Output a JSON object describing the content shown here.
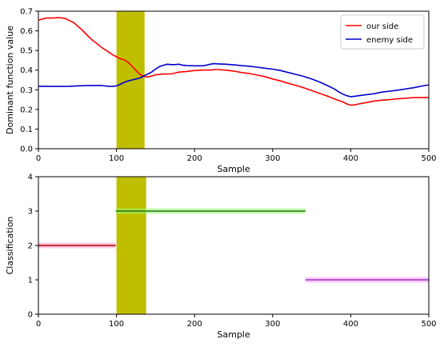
{
  "chart_data": [
    {
      "type": "line",
      "xlabel": "Sample",
      "ylabel": "Dominant function value",
      "xlim": [
        0,
        500
      ],
      "ylim": [
        0,
        0.7
      ],
      "x_ticks": [
        "0",
        "100",
        "200",
        "300",
        "400",
        "500"
      ],
      "y_ticks": [
        "0.0",
        "0.1",
        "0.2",
        "0.3",
        "0.4",
        "0.5",
        "0.6",
        "0.7"
      ],
      "legend_position": "top-right",
      "highlight_band": {
        "x_start": 100,
        "x_end": 136,
        "color": "#bfbf00"
      },
      "series": [
        {
          "name": "our side",
          "color": "#ff0000",
          "points": [
            [
              0,
              0.655
            ],
            [
              5,
              0.66
            ],
            [
              10,
              0.665
            ],
            [
              20,
              0.665
            ],
            [
              25,
              0.668
            ],
            [
              30,
              0.666
            ],
            [
              35,
              0.662
            ],
            [
              40,
              0.652
            ],
            [
              45,
              0.643
            ],
            [
              50,
              0.625
            ],
            [
              55,
              0.608
            ],
            [
              60,
              0.588
            ],
            [
              65,
              0.568
            ],
            [
              70,
              0.55
            ],
            [
              75,
              0.535
            ],
            [
              80,
              0.518
            ],
            [
              85,
              0.505
            ],
            [
              90,
              0.492
            ],
            [
              95,
              0.478
            ],
            [
              100,
              0.468
            ],
            [
              105,
              0.458
            ],
            [
              110,
              0.452
            ],
            [
              115,
              0.44
            ],
            [
              120,
              0.42
            ],
            [
              125,
              0.398
            ],
            [
              130,
              0.378
            ],
            [
              135,
              0.368
            ],
            [
              140,
              0.365
            ],
            [
              145,
              0.37
            ],
            [
              150,
              0.376
            ],
            [
              155,
              0.378
            ],
            [
              160,
              0.38
            ],
            [
              170,
              0.381
            ],
            [
              175,
              0.385
            ],
            [
              180,
              0.39
            ],
            [
              190,
              0.393
            ],
            [
              200,
              0.398
            ],
            [
              210,
              0.4
            ],
            [
              215,
              0.401
            ],
            [
              220,
              0.4
            ],
            [
              225,
              0.403
            ],
            [
              230,
              0.403
            ],
            [
              240,
              0.4
            ],
            [
              250,
              0.395
            ],
            [
              260,
              0.388
            ],
            [
              270,
              0.383
            ],
            [
              280,
              0.375
            ],
            [
              290,
              0.367
            ],
            [
              300,
              0.355
            ],
            [
              310,
              0.345
            ],
            [
              320,
              0.333
            ],
            [
              330,
              0.322
            ],
            [
              340,
              0.31
            ],
            [
              350,
              0.296
            ],
            [
              360,
              0.282
            ],
            [
              370,
              0.268
            ],
            [
              380,
              0.252
            ],
            [
              385,
              0.245
            ],
            [
              390,
              0.238
            ],
            [
              395,
              0.228
            ],
            [
              400,
              0.222
            ],
            [
              405,
              0.223
            ],
            [
              410,
              0.228
            ],
            [
              420,
              0.235
            ],
            [
              430,
              0.243
            ],
            [
              440,
              0.247
            ],
            [
              450,
              0.25
            ],
            [
              460,
              0.254
            ],
            [
              470,
              0.257
            ],
            [
              480,
              0.26
            ],
            [
              490,
              0.26
            ],
            [
              500,
              0.261
            ]
          ]
        },
        {
          "name": "enemy side",
          "color": "#0000cc",
          "points": [
            [
              0,
              0.318
            ],
            [
              10,
              0.318
            ],
            [
              20,
              0.317
            ],
            [
              30,
              0.317
            ],
            [
              40,
              0.318
            ],
            [
              50,
              0.32
            ],
            [
              60,
              0.321
            ],
            [
              70,
              0.322
            ],
            [
              80,
              0.322
            ],
            [
              90,
              0.318
            ],
            [
              95,
              0.317
            ],
            [
              100,
              0.32
            ],
            [
              105,
              0.328
            ],
            [
              110,
              0.338
            ],
            [
              115,
              0.345
            ],
            [
              120,
              0.35
            ],
            [
              125,
              0.355
            ],
            [
              130,
              0.36
            ],
            [
              135,
              0.37
            ],
            [
              140,
              0.38
            ],
            [
              145,
              0.39
            ],
            [
              150,
              0.405
            ],
            [
              155,
              0.418
            ],
            [
              160,
              0.425
            ],
            [
              165,
              0.43
            ],
            [
              170,
              0.428
            ],
            [
              175,
              0.428
            ],
            [
              180,
              0.43
            ],
            [
              185,
              0.425
            ],
            [
              190,
              0.423
            ],
            [
              200,
              0.422
            ],
            [
              210,
              0.422
            ],
            [
              215,
              0.425
            ],
            [
              220,
              0.43
            ],
            [
              225,
              0.433
            ],
            [
              230,
              0.432
            ],
            [
              240,
              0.43
            ],
            [
              250,
              0.427
            ],
            [
              260,
              0.423
            ],
            [
              270,
              0.42
            ],
            [
              280,
              0.415
            ],
            [
              290,
              0.41
            ],
            [
              300,
              0.405
            ],
            [
              310,
              0.398
            ],
            [
              320,
              0.388
            ],
            [
              330,
              0.378
            ],
            [
              340,
              0.368
            ],
            [
              350,
              0.355
            ],
            [
              360,
              0.34
            ],
            [
              370,
              0.322
            ],
            [
              380,
              0.302
            ],
            [
              385,
              0.288
            ],
            [
              390,
              0.278
            ],
            [
              395,
              0.27
            ],
            [
              400,
              0.265
            ],
            [
              405,
              0.267
            ],
            [
              410,
              0.27
            ],
            [
              420,
              0.275
            ],
            [
              430,
              0.28
            ],
            [
              440,
              0.288
            ],
            [
              450,
              0.293
            ],
            [
              460,
              0.298
            ],
            [
              470,
              0.304
            ],
            [
              480,
              0.31
            ],
            [
              490,
              0.318
            ],
            [
              500,
              0.325
            ]
          ]
        }
      ]
    },
    {
      "type": "line",
      "xlabel": "Sample",
      "ylabel": "Classification",
      "xlim": [
        0,
        500
      ],
      "ylim": [
        0,
        4
      ],
      "x_ticks": [
        "0",
        "100",
        "200",
        "300",
        "400",
        "500"
      ],
      "y_ticks": [
        "0",
        "1",
        "2",
        "3",
        "4"
      ],
      "highlight_band": {
        "x_start": 100,
        "x_end": 138,
        "color": "#bfbf00"
      },
      "segments": [
        {
          "x_start": 0,
          "x_end": 99,
          "y": 2,
          "color": "#b00000",
          "glow": "#ff99cc"
        },
        {
          "x_start": 99,
          "x_end": 342,
          "y": 3,
          "color": "#207020",
          "glow": "#99ff66"
        },
        {
          "x_start": 342,
          "x_end": 500,
          "y": 1,
          "color": "#9933cc",
          "glow": "#ff99ff"
        }
      ]
    }
  ]
}
